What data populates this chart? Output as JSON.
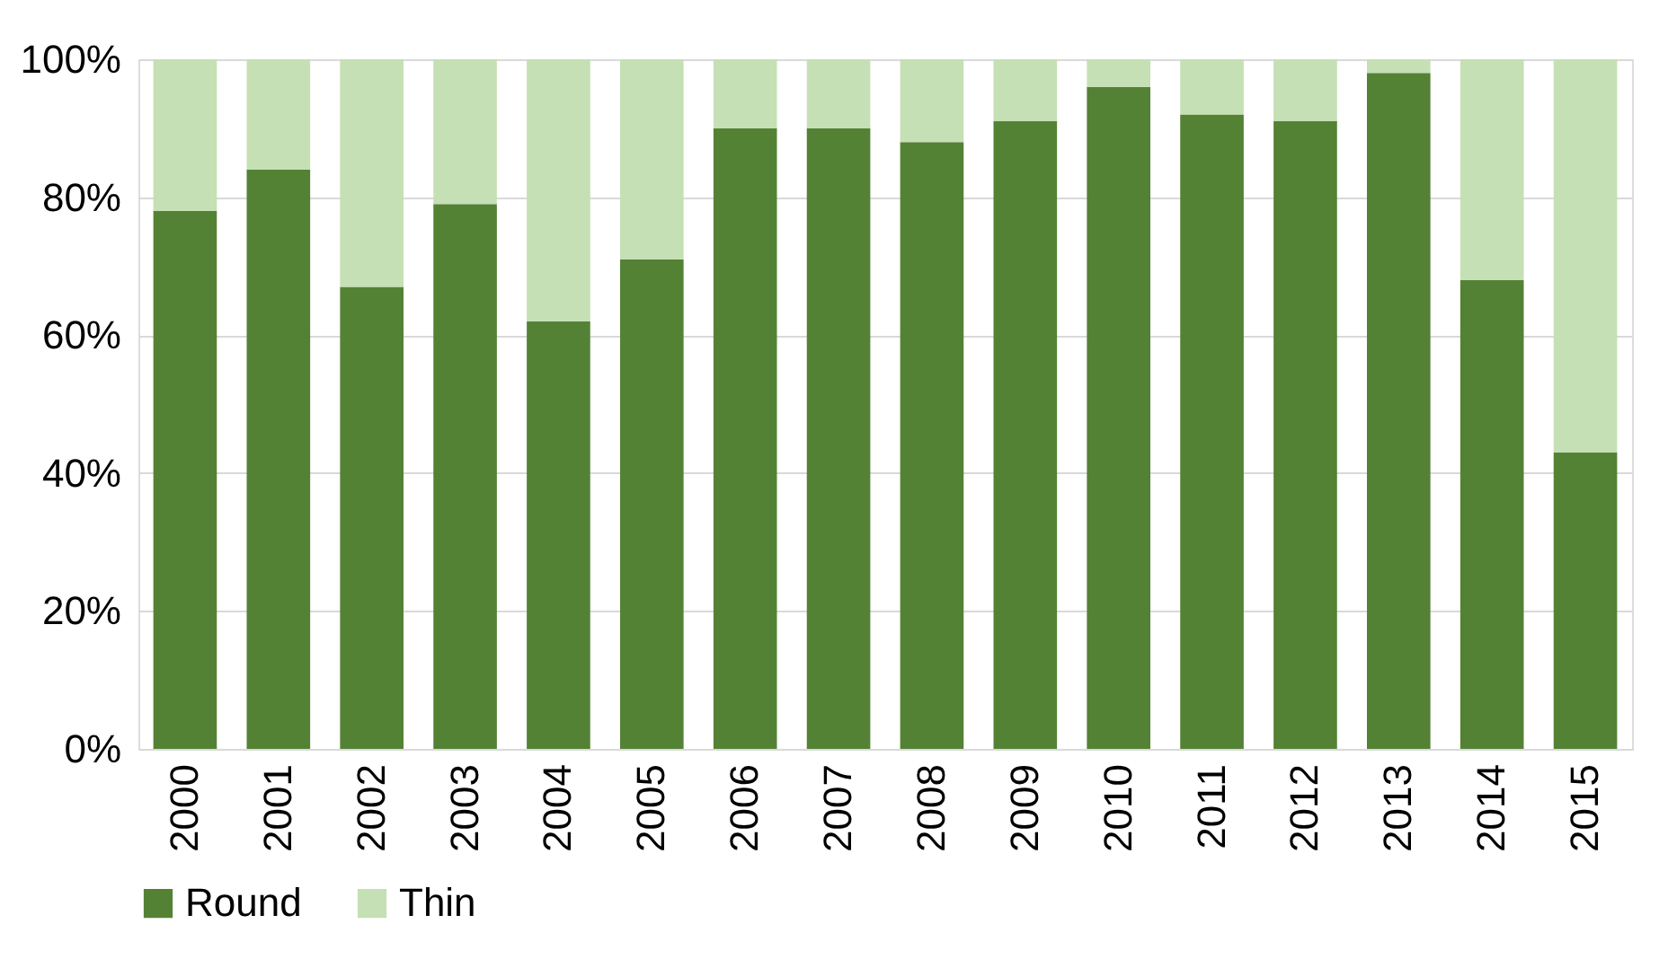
{
  "chart_data": {
    "type": "bar",
    "stacked": true,
    "categories": [
      "2000",
      "2001",
      "2002",
      "2003",
      "2004",
      "2005",
      "2006",
      "2007",
      "2008",
      "2009",
      "2010",
      "2011",
      "2012",
      "2013",
      "2014",
      "2015"
    ],
    "series": [
      {
        "name": "Round",
        "color": "#548235",
        "values": [
          78,
          84,
          67,
          79,
          62,
          71,
          90,
          90,
          88,
          91,
          96,
          92,
          91,
          98,
          68,
          43
        ]
      },
      {
        "name": "Thin",
        "color": "#c5e0b4",
        "values": [
          22,
          16,
          33,
          21,
          38,
          29,
          10,
          10,
          12,
          9,
          4,
          8,
          9,
          2,
          32,
          57
        ]
      }
    ],
    "ylim": [
      0,
      100
    ],
    "yticks": [
      {
        "value": 0,
        "label": "0%"
      },
      {
        "value": 20,
        "label": "20%"
      },
      {
        "value": 40,
        "label": "40%"
      },
      {
        "value": 60,
        "label": "60%"
      },
      {
        "value": 80,
        "label": "80%"
      },
      {
        "value": 100,
        "label": "100%"
      }
    ],
    "grid": "y",
    "legend": "bottom"
  }
}
